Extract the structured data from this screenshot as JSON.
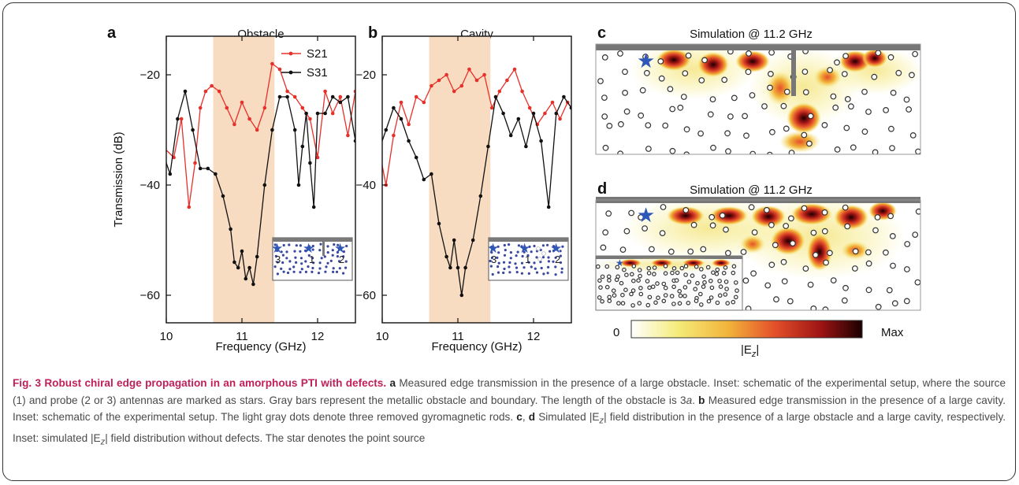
{
  "panels": {
    "a": {
      "letter": "a",
      "title": "Obstacle",
      "xlabel": "Frequency (GHz)",
      "ylabel": "Transmission (dB)",
      "inset_labels": [
        "3",
        "1",
        "2"
      ]
    },
    "b": {
      "letter": "b",
      "title": "Cavity",
      "xlabel": "Frequency (GHz)",
      "inset_labels": [
        "3",
        "1",
        "2"
      ]
    },
    "c": {
      "letter": "c",
      "title": "Simulation @ 11.2 GHz"
    },
    "d": {
      "letter": "d",
      "title": "Simulation @ 11.2 GHz"
    }
  },
  "colorbar": {
    "min_label": "0",
    "max_label": "Max",
    "label": "|E",
    "label_sub": "z",
    "label_end": "|",
    "colors": [
      "#ffffff",
      "#f5ec7a",
      "#f2b43a",
      "#e4502a",
      "#9e1414",
      "#1a0000"
    ]
  },
  "legend": [
    "S21",
    "S31"
  ],
  "colors": {
    "s21": "#e8302a",
    "s31": "#111111",
    "shade": "#f8dcc2",
    "star": "#2f57b8",
    "dots": "#3a48a0"
  },
  "chart_data": [
    {
      "type": "line",
      "title": "Obstacle",
      "xlabel": "Frequency (GHz)",
      "ylabel": "Transmission (dB)",
      "xlim": [
        10,
        12.5
      ],
      "ylim": [
        -65,
        -13
      ],
      "xticks": [
        "10",
        "11",
        "12"
      ],
      "yticks": [
        "-20",
        "-40",
        "-60"
      ],
      "shaded_band": [
        10.62,
        11.43
      ],
      "series": [
        {
          "name": "S21",
          "x": [
            9.95,
            10.1,
            10.2,
            10.3,
            10.38,
            10.45,
            10.52,
            10.6,
            10.7,
            10.8,
            10.9,
            11.0,
            11.1,
            11.2,
            11.3,
            11.4,
            11.5,
            11.6,
            11.7,
            11.8,
            11.9,
            12.0,
            12.1,
            12.2,
            12.3,
            12.4,
            12.5
          ],
          "y": [
            -33,
            -35,
            -28,
            -44,
            -36,
            -26,
            -23,
            -22,
            -23,
            -26,
            -29,
            -25,
            -28,
            -30,
            -26,
            -18,
            -19,
            -23,
            -24,
            -26,
            -28,
            -35,
            -23,
            -27,
            -24,
            -31,
            -23
          ]
        },
        {
          "name": "S31",
          "x": [
            9.95,
            10.05,
            10.15,
            10.25,
            10.35,
            10.45,
            10.55,
            10.65,
            10.75,
            10.85,
            10.9,
            10.95,
            11.0,
            11.05,
            11.1,
            11.15,
            11.2,
            11.3,
            11.4,
            11.5,
            11.6,
            11.7,
            11.75,
            11.8,
            11.85,
            11.9,
            11.95,
            12.0,
            12.1,
            12.2,
            12.3,
            12.4,
            12.5
          ],
          "y": [
            -34,
            -38,
            -28,
            -23,
            -30,
            -37,
            -37,
            -38,
            -42,
            -48,
            -54,
            -55,
            -52,
            -57,
            -55,
            -58,
            -53,
            -40,
            -30,
            -24,
            -24,
            -30,
            -40,
            -33,
            -27,
            -36,
            -44,
            -27,
            -27,
            -24,
            -25,
            -24,
            -32
          ]
        }
      ]
    },
    {
      "type": "line",
      "title": "Cavity",
      "xlabel": "Frequency (GHz)",
      "ylabel": "",
      "xlim": [
        10,
        12.5
      ],
      "ylim": [
        -65,
        -13
      ],
      "xticks": [
        "10",
        "11",
        "12"
      ],
      "yticks": [
        "-20",
        "-40",
        "-60"
      ],
      "shaded_band": [
        10.62,
        11.43
      ],
      "series": [
        {
          "name": "S21",
          "x": [
            9.95,
            10.05,
            10.15,
            10.25,
            10.35,
            10.45,
            10.55,
            10.65,
            10.75,
            10.85,
            10.95,
            11.05,
            11.15,
            11.25,
            11.35,
            11.45,
            11.55,
            11.65,
            11.75,
            11.85,
            11.95,
            12.05,
            12.15,
            12.25,
            12.35,
            12.45,
            12.5
          ],
          "y": [
            -33,
            -40,
            -31,
            -25,
            -29,
            -24,
            -25,
            -22,
            -21,
            -20,
            -23,
            -22,
            -19,
            -21,
            -20,
            -26,
            -23,
            -21,
            -19,
            -23,
            -26,
            -29,
            -27,
            -25,
            -28,
            -25,
            -26
          ]
        },
        {
          "name": "S31",
          "x": [
            9.95,
            10.05,
            10.15,
            10.25,
            10.35,
            10.45,
            10.55,
            10.65,
            10.75,
            10.85,
            10.9,
            10.95,
            11.0,
            11.05,
            11.1,
            11.2,
            11.3,
            11.4,
            11.5,
            11.6,
            11.7,
            11.8,
            11.9,
            12.0,
            12.1,
            12.2,
            12.3,
            12.4,
            12.5
          ],
          "y": [
            -34,
            -30,
            -26,
            -28,
            -32,
            -35,
            -39,
            -38,
            -47,
            -53,
            -55,
            -50,
            -55,
            -60,
            -55,
            -50,
            -42,
            -33,
            -24,
            -27,
            -31,
            -28,
            -33,
            -27,
            -32,
            -44,
            -27,
            -24,
            -26
          ]
        }
      ]
    }
  ],
  "caption": {
    "fig": "Fig. 3",
    "title": "Robust chiral edge propagation in an amorphous PTI with defects.",
    "a": "a",
    "a_text": "Measured edge transmission in the presence of a large obstacle. Inset: schematic of the experimental setup, where the source (1) and probe (2 or 3) antennas are marked as stars. Gray bars represent the metallic obstacle and boundary. The length of the obstacle is 3",
    "a_unit": "a",
    "b": "b",
    "b_text": "Measured edge transmission in the presence of a large cavity. Inset: schematic of the experimental setup. The light gray dots denote three removed gyromagnetic rods.",
    "c": "c",
    "comma": ", ",
    "d": "d",
    "cd_text": "Simulated |E",
    "cd_sub": "z",
    "cd_text2": "| field distribution in the presence of a large obstacle and a large cavity, respectively. Inset: simulated |E",
    "cd_text3": "| field distribution without defects. The star denotes the point source"
  }
}
